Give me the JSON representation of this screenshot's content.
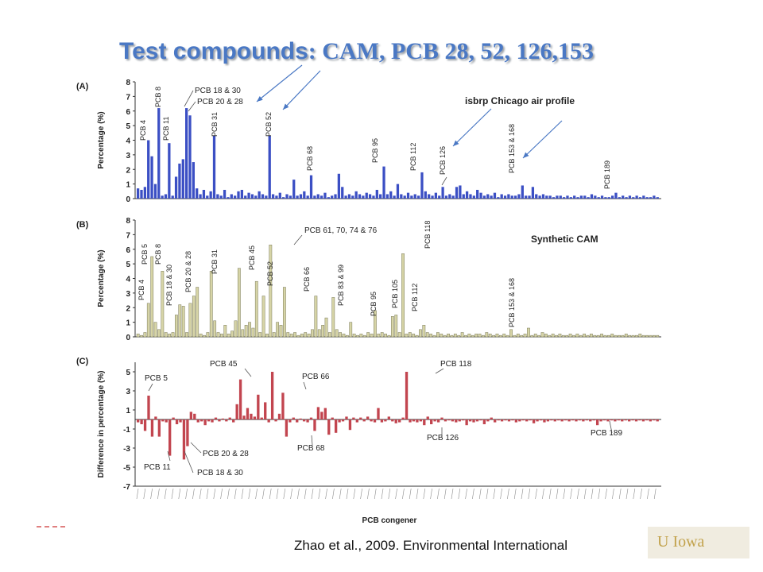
{
  "slide": {
    "title_bold": "Test compounds",
    "title_colon": ":",
    "title_rest": " CAM, PCB 28, 52, 126,153",
    "citation": "Zhao et al., 2009. Environmental International",
    "logo": "U Iowa"
  },
  "colors": {
    "title": "#4a78c4",
    "panel_a_bars": "#3b4fc4",
    "panel_b_bars": "#d6d4a6",
    "panel_b_edge": "#7a7a5a",
    "panel_c_bars": "#c2454f",
    "arrows": "#4a78c4",
    "logo_bg": "#f0ece0",
    "logo_text": "#c2a24c"
  },
  "chart_data": [
    {
      "type": "bar",
      "panel": "(A)",
      "inset_title": "isbrp Chicago air profile",
      "xlabel": "",
      "ylabel": "Percentage (%)",
      "ylim": [
        0,
        8
      ],
      "yticks": [
        0,
        1,
        2,
        3,
        4,
        5,
        6,
        7,
        8
      ],
      "grid": false,
      "values": [
        0.7,
        0.6,
        0.8,
        4.0,
        2.9,
        1.0,
        6.2,
        0.2,
        0.3,
        3.8,
        0.2,
        1.5,
        2.4,
        2.7,
        6.2,
        5.7,
        2.5,
        0.7,
        0.3,
        0.6,
        0.2,
        0.5,
        4.3,
        0.3,
        0.2,
        0.6,
        0.1,
        0.3,
        0.2,
        0.5,
        0.6,
        0.2,
        0.4,
        0.3,
        0.2,
        0.5,
        0.3,
        0.2,
        4.3,
        0.3,
        0.2,
        0.4,
        0.1,
        0.3,
        0.2,
        1.3,
        0.2,
        0.3,
        0.5,
        0.2,
        1.6,
        0.2,
        0.3,
        0.2,
        0.4,
        0.1,
        0.2,
        0.3,
        1.7,
        0.8,
        0.2,
        0.3,
        0.2,
        0.5,
        0.3,
        0.2,
        0.4,
        0.3,
        0.2,
        0.6,
        0.3,
        2.2,
        0.3,
        0.5,
        0.2,
        1.0,
        0.3,
        0.2,
        0.4,
        0.2,
        0.3,
        0.2,
        1.8,
        0.5,
        0.3,
        0.2,
        0.4,
        0.2,
        0.8,
        0.2,
        0.3,
        0.2,
        0.8,
        0.9,
        0.3,
        0.5,
        0.3,
        0.2,
        0.6,
        0.4,
        0.2,
        0.3,
        0.2,
        0.4,
        0.1,
        0.3,
        0.2,
        0.3,
        0.2,
        0.2,
        0.3,
        0.9,
        0.2,
        0.2,
        0.8,
        0.3,
        0.2,
        0.3,
        0.2,
        0.2,
        0.1,
        0.2,
        0.2,
        0.1,
        0.2,
        0.1,
        0.2,
        0.1,
        0.2,
        0.2,
        0.1,
        0.3,
        0.2,
        0.1,
        0.2,
        0.1,
        0.1,
        0.2,
        0.4,
        0.1,
        0.2,
        0.1,
        0.2,
        0.1,
        0.2,
        0.1,
        0.2,
        0.1,
        0.1,
        0.2,
        0.1
      ],
      "annotations": [
        "PCB 4",
        "PCB 8",
        "PCB 11",
        "PCB 18 & 30",
        "PCB 20 & 28",
        "PCB 31",
        "PCB 52",
        "PCB 68",
        "PCB 95",
        "PCB 112",
        "PCB 126",
        "PCB 153 & 168",
        "PCB 189"
      ]
    },
    {
      "type": "bar",
      "panel": "(B)",
      "inset_title": "Synthetic CAM",
      "xlabel": "",
      "ylabel": "Percentage (%)",
      "ylim": [
        0,
        8
      ],
      "yticks": [
        0,
        1,
        2,
        3,
        4,
        5,
        6,
        7,
        8
      ],
      "grid": false,
      "values": [
        0.2,
        0.1,
        0.3,
        2.3,
        5.5,
        1.0,
        0.5,
        4.5,
        0.3,
        0.2,
        0.3,
        1.5,
        2.2,
        2.1,
        0.3,
        2.3,
        2.8,
        3.4,
        0.2,
        0.1,
        0.3,
        4.5,
        1.1,
        0.3,
        0.2,
        0.8,
        0.2,
        0.4,
        1.1,
        4.7,
        0.5,
        0.8,
        1.0,
        0.6,
        3.8,
        0.3,
        2.8,
        0.2,
        6.3,
        0.3,
        1.0,
        0.8,
        3.4,
        0.3,
        0.2,
        0.3,
        0.1,
        0.2,
        0.3,
        0.2,
        0.5,
        2.8,
        0.5,
        0.8,
        1.3,
        0.3,
        2.7,
        0.5,
        0.3,
        0.2,
        0.1,
        1.0,
        0.2,
        0.1,
        0.2,
        0.1,
        0.3,
        0.2,
        1.8,
        0.2,
        0.3,
        0.2,
        0.1,
        1.4,
        1.5,
        0.3,
        5.7,
        0.2,
        0.3,
        0.2,
        0.1,
        0.5,
        0.8,
        0.3,
        0.2,
        0.1,
        0.3,
        0.2,
        0.1,
        0.2,
        0.1,
        0.2,
        0.1,
        0.3,
        0.1,
        0.2,
        0.1,
        0.2,
        0.2,
        0.1,
        0.3,
        0.2,
        0.1,
        0.2,
        0.1,
        0.2,
        0.1,
        0.5,
        0.1,
        0.2,
        0.1,
        0.2,
        0.6,
        0.1,
        0.2,
        0.1,
        0.3,
        0.2,
        0.1,
        0.2,
        0.1,
        0.2,
        0.1,
        0.1,
        0.2,
        0.1,
        0.2,
        0.1,
        0.2,
        0.1,
        0.2,
        0.1,
        0.1,
        0.2,
        0.1,
        0.1,
        0.2,
        0.1,
        0.1,
        0.1,
        0.2,
        0.1,
        0.1,
        0.1,
        0.2,
        0.1,
        0.1,
        0.1,
        0.1,
        0.1
      ],
      "annotations": [
        "PCB 4",
        "PCB 5",
        "PCB 8",
        "PCB 18 & 30",
        "PCB 20 & 28",
        "PCB 31",
        "PCB 45",
        "PCB 52",
        "PCB 61, 70, 74 & 76",
        "PCB 66",
        "PCB 83 & 99",
        "PCB 95",
        "PCB 105",
        "PCB 112",
        "PCB 118",
        "PCB 153 & 168"
      ]
    },
    {
      "type": "bar",
      "panel": "(C)",
      "xlabel": "PCB congener",
      "ylabel": "Difference in percentage (%)",
      "ylim": [
        -7,
        6
      ],
      "yticks": [
        5,
        3,
        1,
        -1,
        -3,
        -5,
        -7
      ],
      "grid": false,
      "values": [
        -0.3,
        -0.5,
        -1.2,
        2.5,
        -1.8,
        0.3,
        -1.8,
        -0.2,
        -0.3,
        -3.8,
        0.2,
        -0.5,
        -0.3,
        -4.2,
        -2.8,
        0.8,
        0.6,
        -0.3,
        -0.2,
        -0.6,
        -0.2,
        -0.3,
        0.2,
        -0.2,
        0.1,
        -0.2,
        0.2,
        -0.3,
        1.6,
        4.2,
        0.4,
        1.2,
        0.6,
        0.3,
        2.6,
        0.2,
        1.8,
        -0.3,
        5.0,
        -0.2,
        0.6,
        2.8,
        -1.8,
        -0.3,
        0.2,
        -0.3,
        0.1,
        -0.2,
        -0.3,
        0.2,
        -1.2,
        1.3,
        0.8,
        1.2,
        -1.6,
        0.2,
        -1.4,
        -0.3,
        -0.2,
        0.3,
        -1.1,
        0.2,
        -0.3,
        0.2,
        -0.2,
        0.3,
        -0.2,
        -0.3,
        1.2,
        -0.3,
        -0.2,
        0.3,
        -0.2,
        -0.4,
        -0.3,
        0.2,
        5.0,
        -0.3,
        -0.2,
        -0.3,
        -0.2,
        -0.6,
        0.3,
        -0.5,
        -0.2,
        -0.3,
        0.2,
        -0.2,
        -0.1,
        -0.2,
        -0.3,
        -0.2,
        -0.1,
        -0.6,
        -0.2,
        -0.3,
        -0.2,
        -0.1,
        -0.5,
        -0.2,
        0.2,
        -0.3,
        -0.1,
        -0.2,
        -0.1,
        -0.2,
        -0.1,
        -0.3,
        -0.2,
        -0.1,
        -0.2,
        -0.1,
        -0.4,
        -0.2,
        -0.1,
        -0.3,
        -0.2,
        -0.1,
        -0.2,
        -0.1,
        -0.2,
        -0.1,
        -0.2,
        -0.1,
        -0.2,
        -0.1,
        -0.2,
        -0.1,
        -0.2,
        -0.1,
        -0.6,
        -0.2,
        -0.1,
        -0.2,
        -0.1,
        -0.2,
        -0.1,
        -0.2,
        -0.1,
        -0.2,
        -0.1,
        -0.2,
        -0.1,
        -0.2,
        -0.1,
        -0.2,
        -0.1,
        -0.2
      ],
      "annotations": [
        "PCB 5",
        "PCB 11",
        "PCB 18 & 30",
        "PCB 20 & 28",
        "PCB 45",
        "PCB 66",
        "PCB 68",
        "PCB 118",
        "PCB 126",
        "PCB 189"
      ]
    }
  ]
}
